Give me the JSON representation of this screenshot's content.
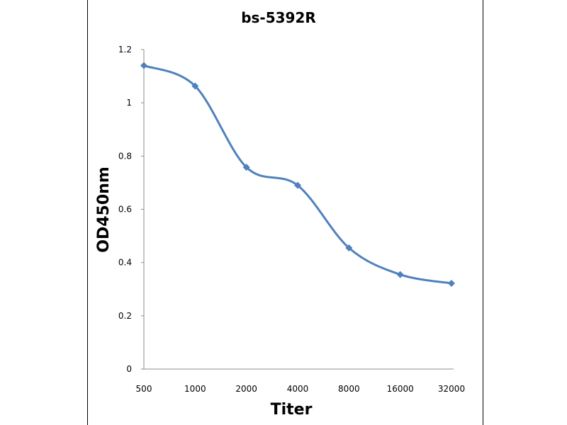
{
  "chart_data": {
    "type": "line",
    "title": "bs-5392R",
    "xlabel": "Titer",
    "ylabel": "OD450nm",
    "categories": [
      "500",
      "1000",
      "2000",
      "4000",
      "8000",
      "16000",
      "32000"
    ],
    "values": [
      1.14,
      1.063,
      0.758,
      0.69,
      0.455,
      0.355,
      0.322
    ],
    "ylim": [
      0,
      1.2
    ],
    "yticks": [
      "0",
      "0.2",
      "0.4",
      "0.6",
      "0.8",
      "1",
      "1.2"
    ],
    "grid": false,
    "line_color": "#4F81BD",
    "marker": "diamond",
    "smooth": true
  }
}
